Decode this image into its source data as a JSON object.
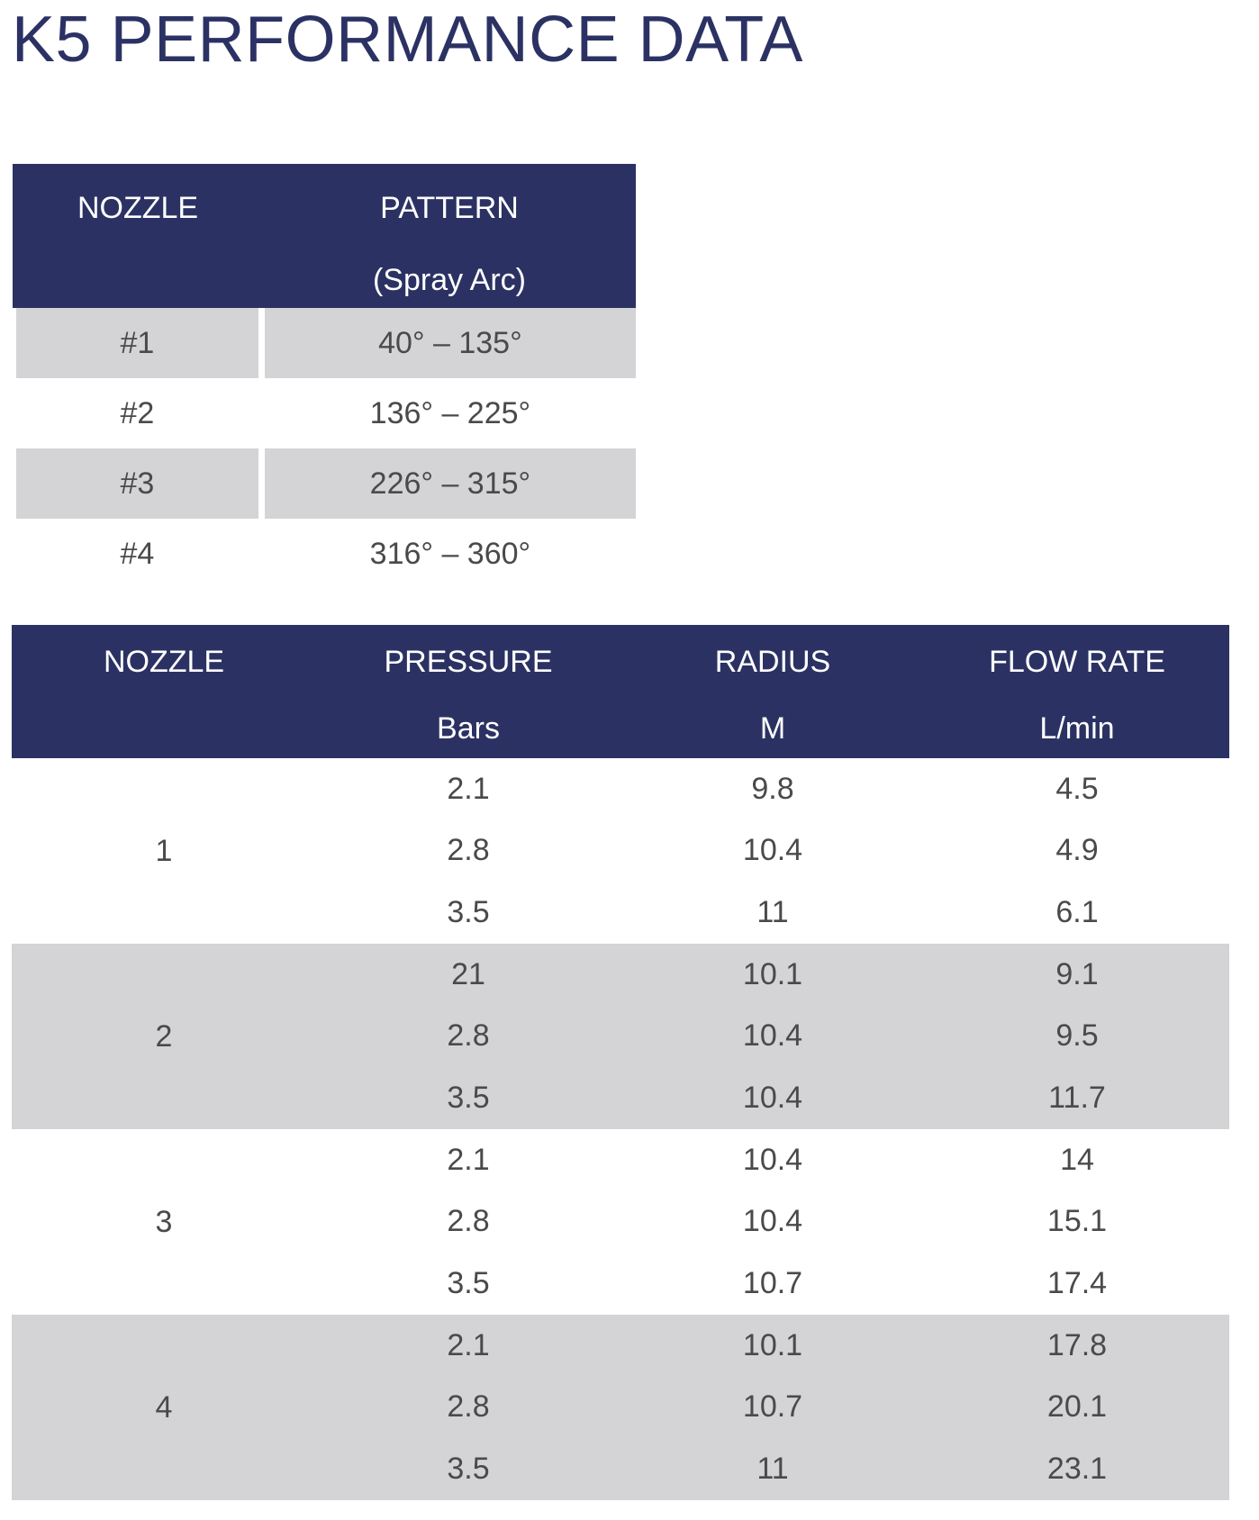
{
  "title": "K5 PERFORMANCE DATA",
  "pattern_table": {
    "headers": {
      "nozzle": "NOZZLE",
      "pattern": "PATTERN",
      "pattern_sub": "(Spray Arc)"
    },
    "rows": [
      {
        "nozzle": "#1",
        "pattern": "40° – 135°"
      },
      {
        "nozzle": "#2",
        "pattern": "136° – 225°"
      },
      {
        "nozzle": "#3",
        "pattern": "226° – 315°"
      },
      {
        "nozzle": "#4",
        "pattern": "316° – 360°"
      }
    ]
  },
  "performance_table": {
    "headers": {
      "nozzle": "NOZZLE",
      "pressure": "PRESSURE",
      "pressure_unit": "Bars",
      "radius": "RADIUS",
      "radius_unit": "M",
      "flow_rate": "FLOW RATE",
      "flow_rate_unit": "L/min"
    },
    "groups": [
      {
        "nozzle": "1",
        "rows": [
          {
            "pressure": "2.1",
            "radius": "9.8",
            "flow_rate": "4.5"
          },
          {
            "pressure": "2.8",
            "radius": "10.4",
            "flow_rate": "4.9"
          },
          {
            "pressure": "3.5",
            "radius": "11",
            "flow_rate": "6.1"
          }
        ]
      },
      {
        "nozzle": "2",
        "rows": [
          {
            "pressure": "21",
            "radius": "10.1",
            "flow_rate": "9.1"
          },
          {
            "pressure": "2.8",
            "radius": "10.4",
            "flow_rate": "9.5"
          },
          {
            "pressure": "3.5",
            "radius": "10.4",
            "flow_rate": "11.7"
          }
        ]
      },
      {
        "nozzle": "3",
        "rows": [
          {
            "pressure": "2.1",
            "radius": "10.4",
            "flow_rate": "14"
          },
          {
            "pressure": "2.8",
            "radius": "10.4",
            "flow_rate": "15.1"
          },
          {
            "pressure": "3.5",
            "radius": "10.7",
            "flow_rate": "17.4"
          }
        ]
      },
      {
        "nozzle": "4",
        "rows": [
          {
            "pressure": "2.1",
            "radius": "10.1",
            "flow_rate": "17.8"
          },
          {
            "pressure": "2.8",
            "radius": "10.7",
            "flow_rate": "20.1"
          },
          {
            "pressure": "3.5",
            "radius": "11",
            "flow_rate": "23.1"
          }
        ]
      }
    ]
  },
  "colors": {
    "header_bg": "#2b3263",
    "title": "#2b3263",
    "row_shade": "#d4d4d6",
    "body_text": "#4a4a4a"
  }
}
